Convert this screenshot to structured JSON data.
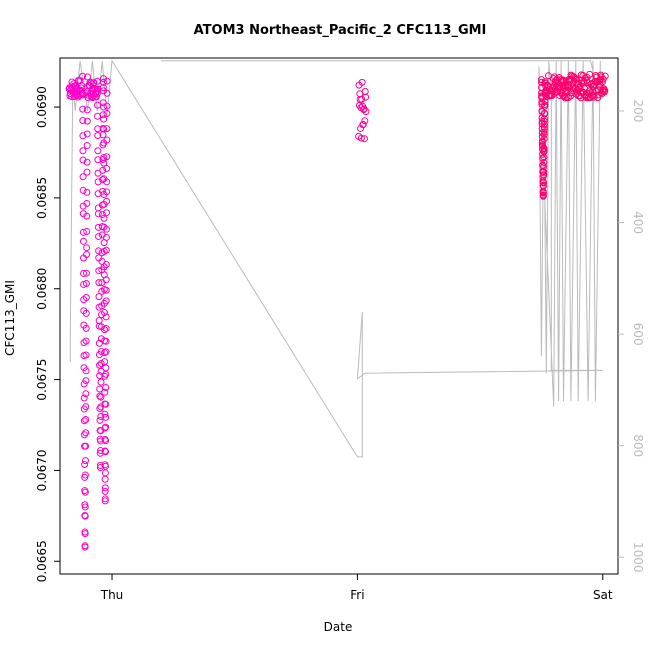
{
  "chart_data": {
    "type": "scatter",
    "title": "ATOM3 Northeast_Pacific_2 CFC113_GMI",
    "xlabel": "Date",
    "ylabel": "CFC113_GMI",
    "x_ticks": [
      "Thu",
      "Fri",
      "Sat"
    ],
    "y_ticks": [
      "0.0665",
      "0.0670",
      "0.0675",
      "0.0680",
      "0.0685",
      "0.0690"
    ],
    "y2_ticks": [
      "200",
      "400",
      "600",
      "800",
      "1000"
    ],
    "x_axis_days": {
      "Thu": 0,
      "Fri": 1,
      "Sat": 2
    },
    "xlim": [
      -0.212,
      2.062
    ],
    "ylim": [
      0.06643,
      0.06927
    ],
    "y2lim_reversed": [
      1030,
      105
    ],
    "grid": false,
    "legend": "none",
    "colors": {
      "points_start": "#ff00cc",
      "points_end": "#ff0066",
      "altitude_line": "#bbbbbb",
      "axis": "#000000",
      "right_axis": "#bbbbbb"
    },
    "series": [
      {
        "marker": "open-circle",
        "segments": [
          {
            "x_start": -0.175,
            "x_end": -0.12,
            "y_low": 0.06905,
            "y_high": 0.06915,
            "kind": "band"
          },
          {
            "x_start": -0.12,
            "x_end": -0.1,
            "y_min": 0.06655,
            "y_top": 0.06915,
            "kind": "dip"
          },
          {
            "x_start": -0.1,
            "x_end": -0.06,
            "y_low": 0.06905,
            "y_high": 0.06915,
            "kind": "band"
          },
          {
            "x_start": -0.06,
            "x_end": -0.035,
            "y_min": 0.067,
            "y_top": 0.06915,
            "kind": "dip"
          },
          {
            "x_start": -0.035,
            "x_end": -0.02,
            "y_min": 0.0668,
            "y_top": 0.06915,
            "kind": "dip"
          },
          {
            "x_start": 1.005,
            "x_end": 1.035,
            "y_low": 0.06878,
            "y_high": 0.06915,
            "kind": "band"
          },
          {
            "x_start": 1.75,
            "x_end": 1.765,
            "y_min": 0.0685,
            "y_top": 0.06915,
            "kind": "dip"
          },
          {
            "x_start": 1.765,
            "x_end": 2.01,
            "y_low": 0.06905,
            "y_high": 0.06918,
            "kind": "band"
          }
        ]
      },
      {
        "name": "",
        "axis": "right",
        "kind": "altitude",
        "points": [
          [
            -0.17,
            650
          ],
          [
            -0.17,
            600
          ],
          [
            -0.16,
            150
          ],
          [
            -0.15,
            200
          ],
          [
            -0.13,
            110
          ],
          [
            -0.1,
            200
          ],
          [
            -0.08,
            110
          ],
          [
            -0.06,
            200
          ],
          [
            -0.04,
            110
          ],
          [
            -0.02,
            210
          ],
          [
            0.0,
            110
          ],
          [
            1.0,
            820
          ],
          [
            1.02,
            820
          ],
          [
            1.02,
            560
          ],
          [
            1.0,
            680
          ],
          [
            1.03,
            670
          ],
          [
            2.0,
            665
          ],
          [
            1.79,
            665
          ],
          [
            1.79,
            180
          ],
          [
            1.78,
            110
          ],
          [
            1.77,
            670
          ],
          [
            1.76,
            170
          ],
          [
            1.75,
            640
          ],
          [
            1.74,
            120
          ],
          [
            1.8,
            730
          ],
          [
            1.81,
            110
          ],
          [
            1.82,
            720
          ],
          [
            1.83,
            110
          ],
          [
            1.84,
            720
          ],
          [
            1.86,
            110
          ],
          [
            1.87,
            720
          ],
          [
            1.89,
            110
          ],
          [
            1.9,
            720
          ],
          [
            1.92,
            110
          ],
          [
            1.94,
            720
          ],
          [
            1.96,
            110
          ],
          [
            1.97,
            720
          ],
          [
            1.99,
            110
          ],
          [
            1.99,
            180
          ],
          [
            1.95,
            110
          ],
          [
            1.1,
            110
          ],
          [
            0.2,
            110
          ]
        ]
      }
    ]
  }
}
